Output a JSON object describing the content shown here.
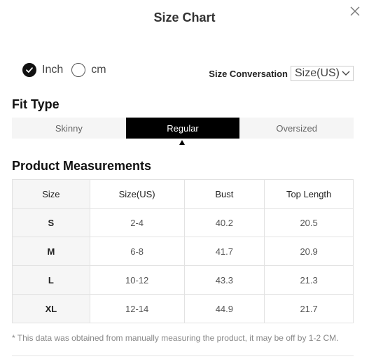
{
  "dialog": {
    "title": "Size Chart"
  },
  "units": {
    "options": [
      {
        "label": "Inch",
        "checked": true
      },
      {
        "label": "cm",
        "checked": false
      }
    ]
  },
  "conversion": {
    "label": "Size Conversation",
    "selected": "Size(US)"
  },
  "fit_type": {
    "title": "Fit Type",
    "tabs": [
      {
        "label": "Skinny",
        "active": false
      },
      {
        "label": "Regular",
        "active": true
      },
      {
        "label": "Oversized",
        "active": false
      }
    ]
  },
  "measurements": {
    "title": "Product Measurements",
    "headers": [
      "Size",
      "Size(US)",
      "Bust",
      "Top Length"
    ],
    "rows": [
      [
        "S",
        "2-4",
        "40.2",
        "20.5"
      ],
      [
        "M",
        "6-8",
        "41.7",
        "20.9"
      ],
      [
        "L",
        "10-12",
        "43.3",
        "21.3"
      ],
      [
        "XL",
        "12-14",
        "44.9",
        "21.7"
      ]
    ]
  },
  "note": "* This data was obtained from manually measuring the product, it may be off by 1-2 CM.",
  "icons": {
    "close": "close-icon",
    "check": "check-icon",
    "dropdown": "chevron-down-icon"
  }
}
